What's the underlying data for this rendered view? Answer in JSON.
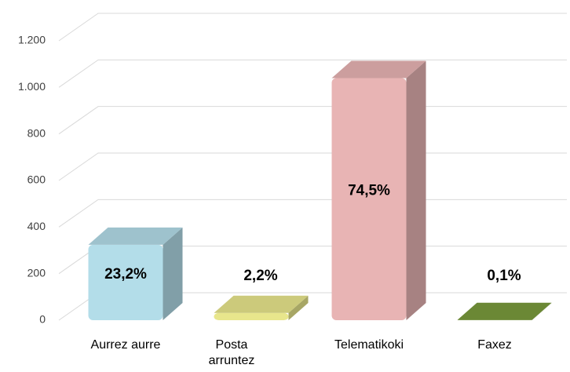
{
  "chart_data": {
    "type": "bar3d",
    "categories": [
      "Aurrez aurre",
      "Posta arruntez",
      "Telematikoki",
      "Faxez"
    ],
    "values": [
      324,
      31,
      1040,
      1
    ],
    "data_labels": [
      "23,2%",
      "2,2%",
      "74,5%",
      "0,1%"
    ],
    "colors": [
      "#b3dde9",
      "#e8e68c",
      "#e8b4b4",
      "#7a9a3c"
    ],
    "ylim": [
      0,
      1200
    ],
    "yticks": [
      0,
      200,
      400,
      600,
      800,
      {
        "value": 1000,
        "label": "1.000"
      },
      {
        "value": 1200,
        "label": "1.200"
      }
    ],
    "grid": true
  }
}
